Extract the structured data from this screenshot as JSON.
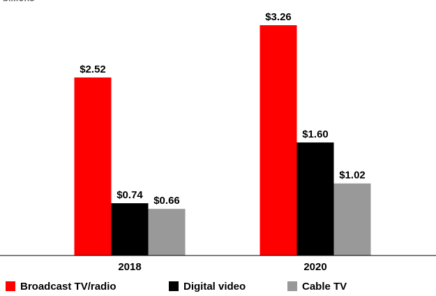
{
  "chart_data": {
    "type": "bar",
    "subtitle": "billions",
    "categories": [
      "2018",
      "2020"
    ],
    "series": [
      {
        "name": "Broadcast TV/radio",
        "color": "#ff0000",
        "values": [
          2.52,
          3.26
        ],
        "value_labels": [
          "$2.52",
          "$3.26"
        ]
      },
      {
        "name": "Digital video",
        "color": "#000000",
        "values": [
          0.74,
          1.6
        ],
        "value_labels": [
          "$0.74",
          "$1.60"
        ]
      },
      {
        "name": "Cable TV",
        "color": "#999999",
        "values": [
          0.66,
          1.02
        ],
        "value_labels": [
          "$0.66",
          "$1.02"
        ]
      }
    ],
    "ylim": [
      0,
      3.6
    ],
    "legend": "bottom"
  }
}
